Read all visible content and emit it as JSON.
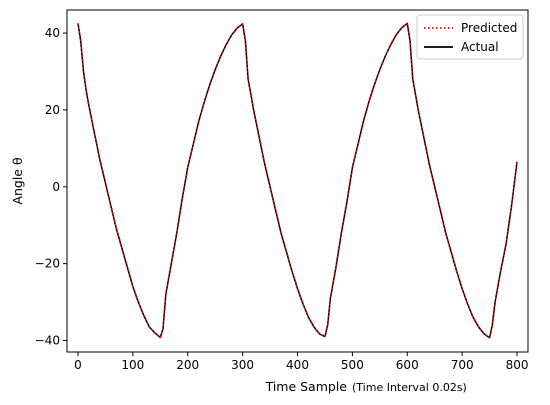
{
  "chart_data": {
    "type": "line",
    "title": "",
    "xlabel": "Time Sample",
    "xlabel_note": "(Time Interval 0.02s)",
    "ylabel": "Angle θ",
    "xlim": [
      -20,
      820
    ],
    "ylim": [
      -43,
      46
    ],
    "xticks": [
      0,
      100,
      200,
      300,
      400,
      500,
      600,
      700,
      800
    ],
    "yticks": [
      -40,
      -20,
      0,
      20,
      40
    ],
    "ytick_labels": [
      "−40",
      "−20",
      "0",
      "20",
      "40"
    ],
    "grid": false,
    "legend_position": "top-right",
    "series": [
      {
        "name": "Predicted",
        "color": "#ff0000",
        "style": "dotted",
        "points": [
          [
            0,
            42.5
          ],
          [
            5,
            38
          ],
          [
            10,
            30
          ],
          [
            15,
            25
          ],
          [
            20,
            21
          ],
          [
            30,
            14
          ],
          [
            40,
            7
          ],
          [
            50,
            1
          ],
          [
            60,
            -5
          ],
          [
            70,
            -11
          ],
          [
            80,
            -16
          ],
          [
            90,
            -21
          ],
          [
            100,
            -26
          ],
          [
            110,
            -30
          ],
          [
            120,
            -33.5
          ],
          [
            130,
            -36.5
          ],
          [
            140,
            -38
          ],
          [
            150,
            -39.2
          ],
          [
            155,
            -37
          ],
          [
            160,
            -28
          ],
          [
            170,
            -20
          ],
          [
            180,
            -12
          ],
          [
            190,
            -3
          ],
          [
            200,
            5
          ],
          [
            210,
            11
          ],
          [
            220,
            17
          ],
          [
            230,
            22
          ],
          [
            240,
            26.5
          ],
          [
            250,
            30.5
          ],
          [
            260,
            34
          ],
          [
            270,
            37
          ],
          [
            280,
            39.5
          ],
          [
            290,
            41.3
          ],
          [
            300,
            42.4
          ],
          [
            305,
            38
          ],
          [
            310,
            28
          ],
          [
            315,
            24
          ],
          [
            320,
            20
          ],
          [
            330,
            13
          ],
          [
            340,
            6
          ],
          [
            350,
            0
          ],
          [
            360,
            -6
          ],
          [
            370,
            -12
          ],
          [
            380,
            -17
          ],
          [
            390,
            -22
          ],
          [
            400,
            -26.5
          ],
          [
            410,
            -30.5
          ],
          [
            420,
            -34
          ],
          [
            430,
            -36.5
          ],
          [
            440,
            -38.3
          ],
          [
            450,
            -39
          ],
          [
            455,
            -36
          ],
          [
            460,
            -29
          ],
          [
            470,
            -21
          ],
          [
            480,
            -12
          ],
          [
            490,
            -4
          ],
          [
            500,
            5
          ],
          [
            510,
            11
          ],
          [
            520,
            17
          ],
          [
            530,
            22
          ],
          [
            540,
            26.5
          ],
          [
            550,
            30.5
          ],
          [
            560,
            34
          ],
          [
            570,
            37
          ],
          [
            580,
            39.6
          ],
          [
            590,
            41.4
          ],
          [
            600,
            42.5
          ],
          [
            605,
            38
          ],
          [
            610,
            28
          ],
          [
            615,
            24
          ],
          [
            620,
            20
          ],
          [
            630,
            13
          ],
          [
            640,
            6
          ],
          [
            650,
            0
          ],
          [
            660,
            -6
          ],
          [
            670,
            -12
          ],
          [
            680,
            -17
          ],
          [
            690,
            -22
          ],
          [
            700,
            -26.5
          ],
          [
            710,
            -30.5
          ],
          [
            720,
            -34
          ],
          [
            730,
            -36.5
          ],
          [
            740,
            -38.3
          ],
          [
            750,
            -39.3
          ],
          [
            755,
            -36
          ],
          [
            760,
            -30
          ],
          [
            770,
            -22
          ],
          [
            780,
            -15
          ],
          [
            790,
            -5
          ],
          [
            800,
            6.5
          ]
        ]
      },
      {
        "name": "Actual",
        "color": "#000000",
        "style": "solid",
        "points": [
          [
            0,
            42.5
          ],
          [
            5,
            38
          ],
          [
            10,
            30
          ],
          [
            15,
            25
          ],
          [
            20,
            21
          ],
          [
            30,
            14
          ],
          [
            40,
            7
          ],
          [
            50,
            1
          ],
          [
            60,
            -5
          ],
          [
            70,
            -11
          ],
          [
            80,
            -16
          ],
          [
            90,
            -21
          ],
          [
            100,
            -26
          ],
          [
            110,
            -30
          ],
          [
            120,
            -33.5
          ],
          [
            130,
            -36.5
          ],
          [
            140,
            -38
          ],
          [
            150,
            -39.2
          ],
          [
            155,
            -37
          ],
          [
            160,
            -28
          ],
          [
            170,
            -20
          ],
          [
            180,
            -12
          ],
          [
            190,
            -3
          ],
          [
            200,
            5
          ],
          [
            210,
            11
          ],
          [
            220,
            17
          ],
          [
            230,
            22
          ],
          [
            240,
            26.5
          ],
          [
            250,
            30.5
          ],
          [
            260,
            34
          ],
          [
            270,
            37
          ],
          [
            280,
            39.5
          ],
          [
            290,
            41.3
          ],
          [
            300,
            42.4
          ],
          [
            305,
            38
          ],
          [
            310,
            28
          ],
          [
            315,
            24
          ],
          [
            320,
            20
          ],
          [
            330,
            13
          ],
          [
            340,
            6
          ],
          [
            350,
            0
          ],
          [
            360,
            -6
          ],
          [
            370,
            -12
          ],
          [
            380,
            -17
          ],
          [
            390,
            -22
          ],
          [
            400,
            -26.5
          ],
          [
            410,
            -30.5
          ],
          [
            420,
            -34
          ],
          [
            430,
            -36.5
          ],
          [
            440,
            -38.3
          ],
          [
            450,
            -39
          ],
          [
            455,
            -36
          ],
          [
            460,
            -29
          ],
          [
            470,
            -21
          ],
          [
            480,
            -12
          ],
          [
            490,
            -4
          ],
          [
            500,
            5
          ],
          [
            510,
            11
          ],
          [
            520,
            17
          ],
          [
            530,
            22
          ],
          [
            540,
            26.5
          ],
          [
            550,
            30.5
          ],
          [
            560,
            34
          ],
          [
            570,
            37
          ],
          [
            580,
            39.6
          ],
          [
            590,
            41.4
          ],
          [
            600,
            42.5
          ],
          [
            605,
            38
          ],
          [
            610,
            28
          ],
          [
            615,
            24
          ],
          [
            620,
            20
          ],
          [
            630,
            13
          ],
          [
            640,
            6
          ],
          [
            650,
            0
          ],
          [
            660,
            -6
          ],
          [
            670,
            -12
          ],
          [
            680,
            -17
          ],
          [
            690,
            -22
          ],
          [
            700,
            -26.5
          ],
          [
            710,
            -30.5
          ],
          [
            720,
            -34
          ],
          [
            730,
            -36.5
          ],
          [
            740,
            -38.3
          ],
          [
            750,
            -39.3
          ],
          [
            755,
            -36
          ],
          [
            760,
            -30
          ],
          [
            770,
            -22
          ],
          [
            780,
            -15
          ],
          [
            790,
            -5
          ],
          [
            800,
            6.5
          ]
        ]
      }
    ]
  }
}
